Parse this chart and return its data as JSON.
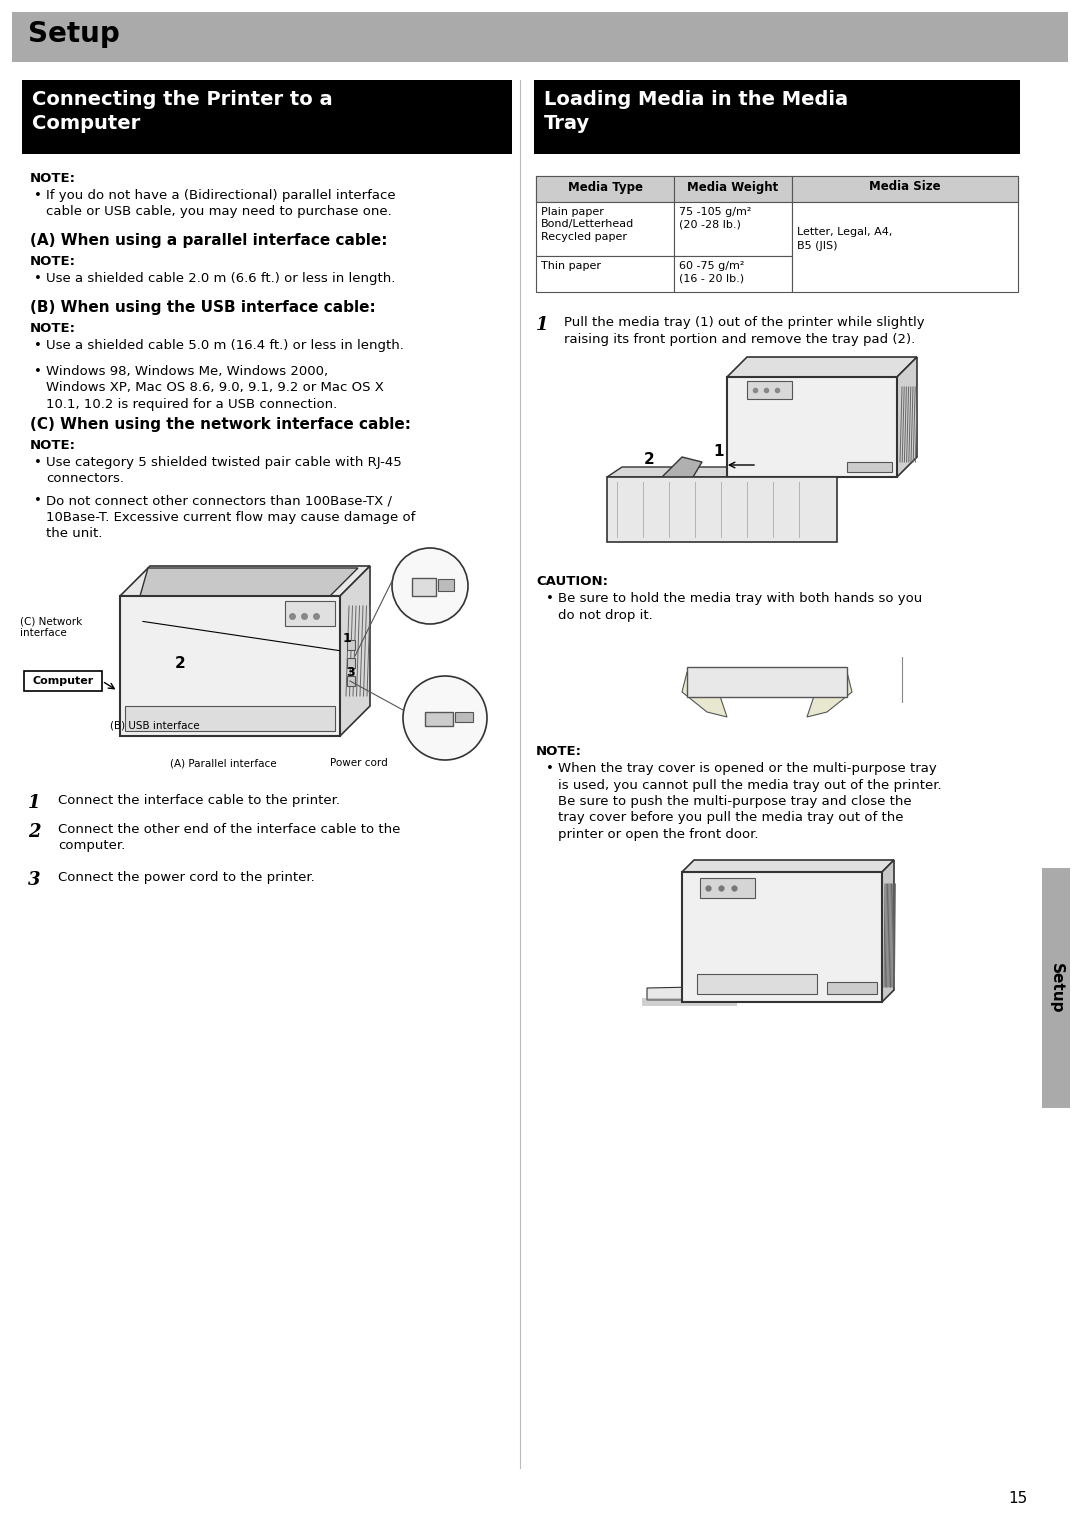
{
  "page_bg": "#ffffff",
  "top_banner_color": "#aaaaaa",
  "top_banner_text": "Setup",
  "left_header_bg": "#000000",
  "left_header_text_color": "#ffffff",
  "right_header_bg": "#000000",
  "right_header_text_color": "#ffffff",
  "right_table_headers": [
    "Media Type",
    "Media Weight",
    "Media Size"
  ],
  "right_table_row1_col1": "Plain paper\nBond/Letterhead\nRecycled paper",
  "right_table_row1_col2": "75 -105 g/m²\n(20 -28 lb.)",
  "right_table_row2_col1": "Thin paper",
  "right_table_row2_col2": "60 -75 g/m²\n(16 - 20 lb.)",
  "right_table_col3_merged": "Letter, Legal, A4,\nB5 (JIS)",
  "left_steps": [
    {
      "num": "1",
      "text": "Connect the interface cable to the printer."
    },
    {
      "num": "2",
      "text": "Connect the other end of the interface cable to the\ncomputer."
    },
    {
      "num": "3",
      "text": "Connect the power cord to the printer."
    }
  ],
  "page_number": "15",
  "sidebar_text": "Setup",
  "sidebar_color": "#aaaaaa",
  "font_size_body": 9.5,
  "font_size_header": 14,
  "font_size_subheader": 11,
  "font_size_note": 9.5,
  "font_size_banner": 18,
  "font_size_step_num": 13,
  "table_header_bg": "#cccccc",
  "table_border": "#555555"
}
